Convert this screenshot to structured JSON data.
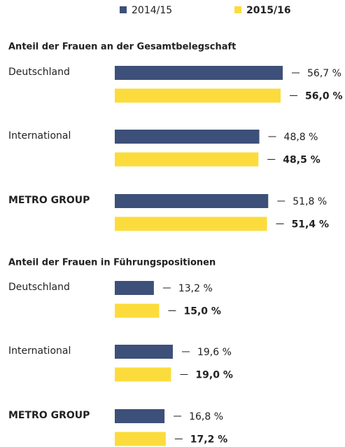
{
  "chart_data": [
    {
      "type": "bar",
      "title": "Anteil der Frauen an der Gesamtbelegschaft",
      "categories": [
        "Deutschland",
        "International",
        "METRO GROUP"
      ],
      "series": [
        {
          "name": "2014/15",
          "color": "#3d5079",
          "values": [
            56.7,
            48.8,
            51.8
          ],
          "value_labels": [
            "56,7 %",
            "48,8 %",
            "51,8 %"
          ]
        },
        {
          "name": "2015/16",
          "color": "#fcdc3c",
          "values": [
            56.0,
            48.5,
            51.4
          ],
          "value_labels": [
            "56,0 %",
            "48,5 %",
            "51,4 %"
          ]
        }
      ]
    },
    {
      "type": "bar",
      "title": "Anteil der Frauen in Führungspositionen",
      "categories": [
        "Deutschland",
        "International",
        "METRO GROUP"
      ],
      "series": [
        {
          "color": "#3d5079",
          "values": [
            13.2,
            19.6,
            16.8
          ],
          "value_labels": [
            "13,2 %",
            "19,6 %",
            "16,8 %"
          ]
        },
        {
          "color": "#fcdc3c",
          "values": [
            15.0,
            19.0,
            17.2
          ],
          "value_labels": [
            "15,0 %",
            "19,0 %",
            "17,2 %"
          ]
        }
      ]
    }
  ]
}
